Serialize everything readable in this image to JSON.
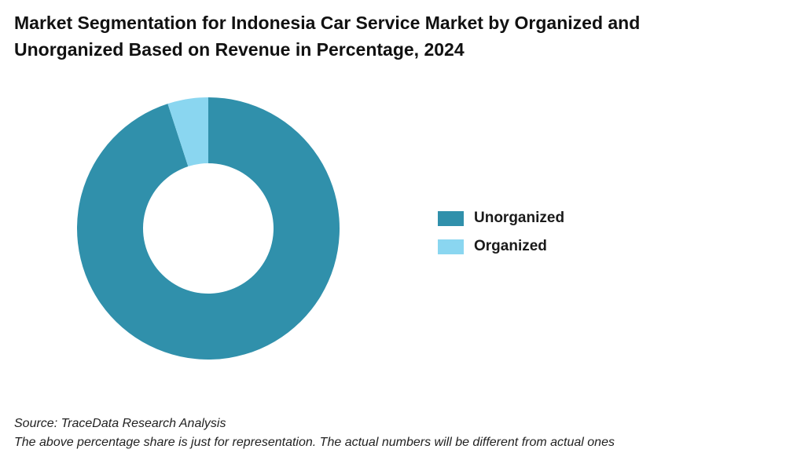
{
  "chart_data": {
    "type": "pie",
    "title": "Market Segmentation for Indonesia Car Service Market by Organized and Unorganized Based on Revenue in Percentage, 2024",
    "categories": [
      "Unorganized",
      "Organized"
    ],
    "values": [
      95,
      5
    ],
    "colors": [
      "#3090AB",
      "#8AD6F0"
    ],
    "donut": true,
    "legend_position": "right"
  },
  "footer": {
    "source": "Source: TraceData Research Analysis",
    "note": "The above percentage share is just for representation. The actual numbers will be different from actual ones"
  }
}
